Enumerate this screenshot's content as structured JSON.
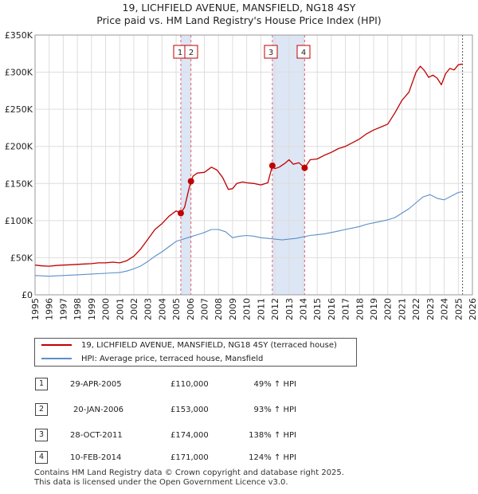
{
  "title_line1": "19, LICHFIELD AVENUE, MANSFIELD, NG18 4SY",
  "title_line2": "Price paid vs. HM Land Registry's House Price Index (HPI)",
  "chart_data": {
    "type": "line",
    "title": "19, LICHFIELD AVENUE, MANSFIELD, NG18 4SY — Price paid vs. HM Land Registry's House Price Index (HPI)",
    "xlabel": "",
    "ylabel": "",
    "xlim": [
      1995,
      2026
    ],
    "ylim": [
      0,
      350000
    ],
    "y_ticks": [
      0,
      50000,
      100000,
      150000,
      200000,
      250000,
      300000,
      350000
    ],
    "y_tick_labels": [
      "£0",
      "£50K",
      "£100K",
      "£150K",
      "£200K",
      "£250K",
      "£300K",
      "£350K"
    ],
    "x_ticks": [
      1995,
      1996,
      1997,
      1998,
      1999,
      2000,
      2001,
      2002,
      2003,
      2004,
      2005,
      2006,
      2007,
      2008,
      2009,
      2010,
      2011,
      2012,
      2013,
      2014,
      2015,
      2016,
      2017,
      2018,
      2019,
      2020,
      2021,
      2022,
      2023,
      2024,
      2025,
      2026
    ],
    "grid": true,
    "colors": {
      "property": "#c00000",
      "hpi": "#5b8fc8",
      "event_line": "#e06070",
      "shade": "#dde6f5"
    },
    "series": [
      {
        "name": "19, LICHFIELD AVENUE, MANSFIELD, NG18 4SY (terraced house)",
        "x": [
          1995.0,
          1995.5,
          1996.0,
          1996.5,
          1997.0,
          1997.5,
          1998.0,
          1998.5,
          1999.0,
          1999.5,
          2000.0,
          2000.5,
          2001.0,
          2001.5,
          2002.0,
          2002.5,
          2003.0,
          2003.5,
          2004.0,
          2004.5,
          2005.0,
          2005.33,
          2005.6,
          2005.9,
          2006.05,
          2006.2,
          2006.5,
          2007.0,
          2007.5,
          2007.9,
          2008.3,
          2008.7,
          2009.0,
          2009.3,
          2009.7,
          2010.0,
          2010.5,
          2011.0,
          2011.5,
          2011.82,
          2012.0,
          2012.3,
          2012.7,
          2013.0,
          2013.3,
          2013.7,
          2014.11,
          2014.5,
          2015.0,
          2015.5,
          2016.0,
          2016.5,
          2017.0,
          2017.5,
          2018.0,
          2018.5,
          2019.0,
          2019.5,
          2020.0,
          2020.5,
          2021.0,
          2021.5,
          2022.0,
          2022.3,
          2022.6,
          2022.9,
          2023.2,
          2023.5,
          2023.8,
          2024.1,
          2024.4,
          2024.7,
          2025.0,
          2025.3
        ],
        "values": [
          40000,
          39000,
          38500,
          39500,
          40000,
          40500,
          41000,
          41500,
          42000,
          43000,
          43000,
          44000,
          43000,
          46000,
          52000,
          62000,
          75000,
          88000,
          96000,
          106000,
          113000,
          110000,
          118000,
          142000,
          153000,
          160000,
          164000,
          165000,
          172000,
          168000,
          158000,
          142000,
          143000,
          150000,
          152000,
          151000,
          150000,
          148000,
          151000,
          174000,
          170000,
          172000,
          177000,
          182000,
          176000,
          178000,
          171000,
          182000,
          183000,
          188000,
          192000,
          197000,
          200000,
          205000,
          210000,
          217000,
          222000,
          226000,
          230000,
          245000,
          262000,
          273000,
          300000,
          308000,
          302000,
          293000,
          296000,
          292000,
          283000,
          298000,
          305000,
          303000,
          310000,
          311000
        ]
      },
      {
        "name": "HPI: Average price, terraced house, Mansfield",
        "x": [
          1995.0,
          1995.5,
          1996.0,
          1996.5,
          1997.0,
          1997.5,
          1998.0,
          1998.5,
          1999.0,
          1999.5,
          2000.0,
          2000.5,
          2001.0,
          2001.5,
          2002.0,
          2002.5,
          2003.0,
          2003.5,
          2004.0,
          2004.5,
          2005.0,
          2005.5,
          2006.0,
          2006.5,
          2007.0,
          2007.5,
          2008.0,
          2008.5,
          2009.0,
          2009.5,
          2010.0,
          2010.5,
          2011.0,
          2011.5,
          2012.0,
          2012.5,
          2013.0,
          2013.5,
          2014.0,
          2014.5,
          2015.0,
          2015.5,
          2016.0,
          2016.5,
          2017.0,
          2017.5,
          2018.0,
          2018.5,
          2019.0,
          2019.5,
          2020.0,
          2020.5,
          2021.0,
          2021.5,
          2022.0,
          2022.5,
          2023.0,
          2023.5,
          2024.0,
          2024.5,
          2025.0,
          2025.3
        ],
        "values": [
          26000,
          25500,
          25000,
          25500,
          26000,
          26500,
          27000,
          27500,
          28000,
          28500,
          29000,
          29500,
          30000,
          32000,
          35000,
          39000,
          45000,
          52000,
          58000,
          65000,
          72000,
          75000,
          78000,
          81000,
          84000,
          88000,
          88000,
          85000,
          77000,
          79000,
          80000,
          79000,
          77000,
          76000,
          75000,
          74000,
          75000,
          76000,
          78000,
          80000,
          81000,
          82000,
          84000,
          86000,
          88000,
          90000,
          92000,
          95000,
          97000,
          99000,
          101000,
          104000,
          110000,
          116000,
          124000,
          132000,
          135000,
          130000,
          128000,
          133000,
          138000,
          139000
        ]
      }
    ],
    "events": [
      {
        "label": "1",
        "x": 2005.33,
        "value": 110000
      },
      {
        "label": "2",
        "x": 2006.05,
        "value": 153000
      },
      {
        "label": "3",
        "x": 2011.82,
        "value": 174000
      },
      {
        "label": "4",
        "x": 2014.11,
        "value": 171000
      }
    ],
    "shaded_ranges": [
      [
        2005.33,
        2006.05
      ],
      [
        2011.82,
        2014.11
      ]
    ],
    "dashed_end_x": 2025.3
  },
  "legend": {
    "property_label": "19, LICHFIELD AVENUE, MANSFIELD, NG18 4SY (terraced house)",
    "hpi_label": "HPI: Average price, terraced house, Mansfield"
  },
  "transactions": [
    {
      "num": "1",
      "date": "29-APR-2005",
      "price": "£110,000",
      "hpi": "49% ↑ HPI"
    },
    {
      "num": "2",
      "date": "20-JAN-2006",
      "price": "£153,000",
      "hpi": "93% ↑ HPI"
    },
    {
      "num": "3",
      "date": "28-OCT-2011",
      "price": "£174,000",
      "hpi": "138% ↑ HPI"
    },
    {
      "num": "4",
      "date": "10-FEB-2014",
      "price": "£171,000",
      "hpi": "124% ↑ HPI"
    }
  ],
  "footer": {
    "line1": "Contains HM Land Registry data © Crown copyright and database right 2025.",
    "line2": "This data is licensed under the Open Government Licence v3.0."
  }
}
